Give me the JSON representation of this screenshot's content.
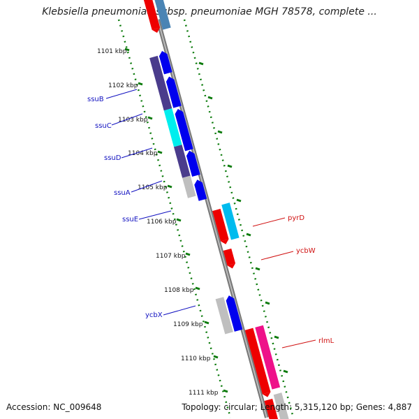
{
  "title": "Klebsiella pneumoniae subsp. pneumoniae MGH 78578, complete ...",
  "footer": {
    "accession": "Accession: NC_009648",
    "summary": "Topology: circular; Length: 5,315,120 bp; Genes: 4,887"
  },
  "kbp_labels": [
    "1101 kbp",
    "1102 kbp",
    "1103 kbp",
    "1104 kbp",
    "1105 kbp",
    "1106 kbp",
    "1107 kbp",
    "1108 kbp",
    "1109 kbp",
    "1110 kbp",
    "1111 kbp"
  ],
  "gene_labels_left": [
    "ssuB",
    "ssuC",
    "ssuD",
    "ssuA",
    "ssuE",
    "ycbX"
  ],
  "gene_labels_right": [
    "pyrD",
    "ycbW",
    "rlmL"
  ],
  "colors": {
    "blue": "#0000ee",
    "dark_purple": "#4a3c8c",
    "cyan": "#00eeee",
    "red": "#ee0000",
    "magenta": "#ee1289",
    "grey": "#bfbfbf",
    "steel_blue": "#4a84b4",
    "tick_green": "#0a7a0a"
  }
}
